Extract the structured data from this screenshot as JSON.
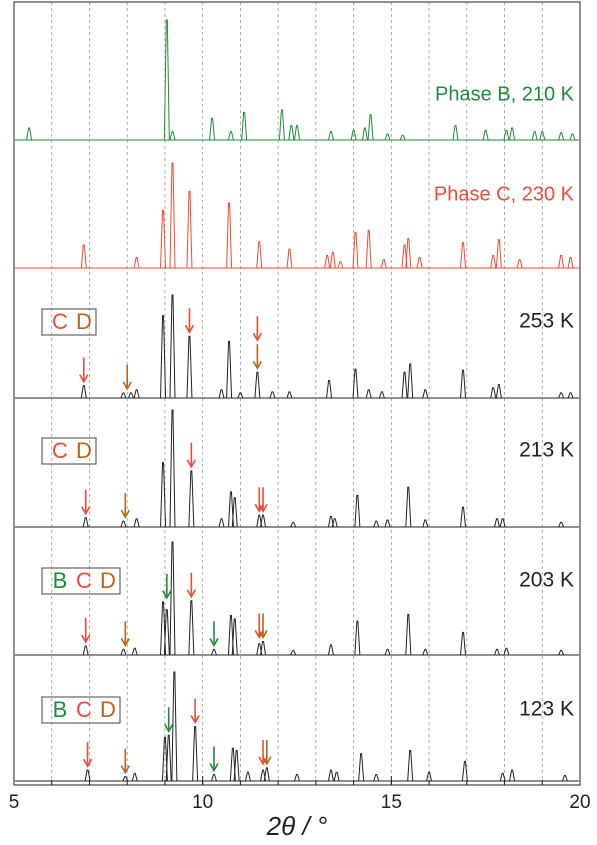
{
  "chart_data": {
    "type": "stacked-pattern",
    "xlabel": "2θ / °",
    "xlim": [
      5,
      20
    ],
    "xticks": [
      5,
      10,
      15,
      20
    ],
    "grid_x": [
      6,
      7,
      8,
      9,
      10,
      11,
      12,
      13,
      14,
      15,
      16,
      17,
      18,
      19
    ],
    "series": [
      {
        "name": "Phase B, 210 K",
        "color": "#1e8c3a",
        "x": [
          5.4,
          9.05,
          9.2,
          10.25,
          10.75,
          11.1,
          12.1,
          12.35,
          12.5,
          13.4,
          14.0,
          14.3,
          14.45,
          14.9,
          15.3,
          16.7,
          17.5,
          18.05,
          18.2,
          18.8,
          19.0,
          19.5,
          19.8
        ],
        "values": [
          10,
          100,
          7,
          18,
          7,
          23,
          25,
          12,
          12,
          7,
          8,
          10,
          21,
          5,
          4,
          12,
          8,
          8,
          10,
          7,
          7,
          6,
          5
        ],
        "phases": [],
        "arrows": []
      },
      {
        "name": "Phase C, 230 K",
        "color": "#f04a35",
        "x": [
          6.85,
          8.25,
          8.95,
          9.2,
          9.65,
          10.7,
          11.5,
          12.3,
          13.3,
          13.45,
          13.65,
          14.05,
          14.4,
          14.8,
          15.35,
          15.45,
          15.75,
          16.9,
          17.7,
          17.85,
          18.4,
          19.5,
          19.75
        ],
        "values": [
          22,
          10,
          55,
          100,
          73,
          62,
          25,
          18,
          12,
          15,
          6,
          34,
          36,
          8,
          22,
          28,
          10,
          24,
          12,
          27,
          8,
          12,
          10
        ],
        "phases": [],
        "arrows": []
      },
      {
        "name": "253 K",
        "color": "#222222",
        "x": [
          6.85,
          7.9,
          8.1,
          8.25,
          8.95,
          9.2,
          9.65,
          10.5,
          10.7,
          11.0,
          11.45,
          11.85,
          12.3,
          13.35,
          14.05,
          14.4,
          14.75,
          15.35,
          15.5,
          15.9,
          16.9,
          17.7,
          17.85,
          19.5,
          19.75
        ],
        "values": [
          12,
          5,
          5,
          8,
          80,
          100,
          60,
          8,
          55,
          5,
          25,
          6,
          6,
          17,
          28,
          8,
          6,
          25,
          33,
          8,
          27,
          10,
          13,
          5,
          5
        ],
        "phases": [
          {
            "label": "C",
            "color": "#f04a35"
          },
          {
            "label": "D",
            "color": "#b8651b"
          }
        ],
        "arrows": [
          {
            "x": 6.85,
            "color": "#f04a35"
          },
          {
            "x": 8.0,
            "color": "#b8651b"
          },
          {
            "x": 9.65,
            "color": "#f04a35"
          },
          {
            "x": 11.45,
            "color": "#b8651b"
          },
          {
            "x": 11.45,
            "color": "#f04a35"
          }
        ]
      },
      {
        "name": "213 K",
        "color": "#222222",
        "x": [
          6.9,
          7.9,
          8.25,
          8.95,
          9.2,
          9.7,
          10.5,
          10.75,
          10.85,
          11.5,
          11.6,
          12.4,
          13.4,
          13.5,
          14.1,
          14.6,
          14.9,
          15.45,
          15.9,
          16.9,
          17.8,
          17.95,
          19.5
        ],
        "values": [
          8,
          5,
          7,
          55,
          100,
          48,
          7,
          30,
          25,
          10,
          10,
          4,
          9,
          7,
          27,
          5,
          6,
          34,
          6,
          17,
          7,
          7,
          4
        ],
        "phases": [
          {
            "label": "C",
            "color": "#f04a35"
          },
          {
            "label": "D",
            "color": "#b8651b"
          }
        ],
        "arrows": [
          {
            "x": 6.9,
            "color": "#f04a35"
          },
          {
            "x": 7.95,
            "color": "#b8651b"
          },
          {
            "x": 9.7,
            "color": "#f04a35"
          },
          {
            "x": 11.5,
            "color": "#f04a35"
          },
          {
            "x": 11.6,
            "color": "#f04a35"
          }
        ]
      },
      {
        "name": "203 K",
        "color": "#222222",
        "x": [
          6.9,
          7.9,
          8.2,
          8.95,
          9.05,
          9.2,
          9.7,
          10.3,
          10.75,
          10.85,
          11.5,
          11.6,
          12.4,
          13.4,
          14.1,
          14.9,
          15.45,
          15.9,
          16.9,
          17.8,
          18.05,
          19.5
        ],
        "values": [
          8,
          5,
          6,
          47,
          40,
          100,
          48,
          5,
          35,
          32,
          10,
          12,
          4,
          9,
          30,
          5,
          36,
          5,
          20,
          5,
          6,
          4
        ],
        "phases": [
          {
            "label": "B",
            "color": "#1e8c3a"
          },
          {
            "label": "C",
            "color": "#f04a35"
          },
          {
            "label": "D",
            "color": "#b8651b"
          }
        ],
        "arrows": [
          {
            "x": 6.9,
            "color": "#f04a35"
          },
          {
            "x": 7.95,
            "color": "#b8651b"
          },
          {
            "x": 9.05,
            "color": "#1e8c3a"
          },
          {
            "x": 9.7,
            "color": "#f04a35"
          },
          {
            "x": 10.3,
            "color": "#1e8c3a"
          },
          {
            "x": 11.5,
            "color": "#f04a35"
          },
          {
            "x": 11.6,
            "color": "#b8651b"
          }
        ]
      },
      {
        "name": "123 K",
        "color": "#222222",
        "x": [
          6.95,
          7.95,
          8.2,
          9.0,
          9.1,
          9.25,
          9.8,
          10.3,
          10.8,
          10.9,
          11.2,
          11.6,
          11.7,
          12.5,
          13.4,
          13.55,
          14.2,
          14.6,
          15.5,
          16.0,
          16.95,
          17.95,
          18.2,
          19.6
        ],
        "values": [
          10,
          4,
          7,
          40,
          42,
          100,
          50,
          6,
          30,
          28,
          8,
          10,
          12,
          6,
          10,
          8,
          25,
          6,
          28,
          8,
          18,
          7,
          10,
          5
        ],
        "phases": [
          {
            "label": "B",
            "color": "#1e8c3a"
          },
          {
            "label": "C",
            "color": "#f04a35"
          },
          {
            "label": "D",
            "color": "#b8651b"
          }
        ],
        "arrows": [
          {
            "x": 6.95,
            "color": "#f04a35"
          },
          {
            "x": 7.95,
            "color": "#b8651b"
          },
          {
            "x": 9.1,
            "color": "#1e8c3a"
          },
          {
            "x": 9.8,
            "color": "#f04a35"
          },
          {
            "x": 10.3,
            "color": "#1e8c3a"
          },
          {
            "x": 11.6,
            "color": "#f04a35"
          },
          {
            "x": 11.7,
            "color": "#b8651b"
          }
        ]
      }
    ]
  }
}
